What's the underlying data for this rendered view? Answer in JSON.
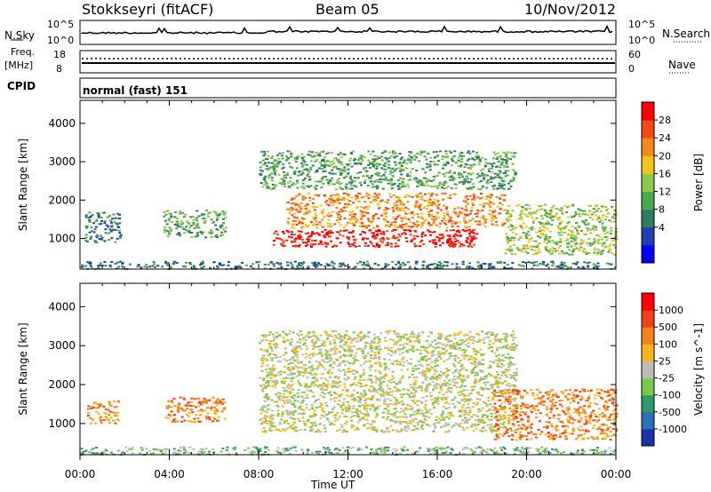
{
  "header": {
    "station": "Stokkseyri (fitACF)",
    "beam": "Beam 05",
    "date": "10/Nov/2012"
  },
  "panels": {
    "nsky_label": "N.Sky",
    "nsky_ticks": [
      "10^5",
      "10^0"
    ],
    "nsearch_label": "N.Search",
    "nsearch_ticks": [
      "10^5",
      "10^0"
    ],
    "freq_label_top": "Freq.",
    "freq_label_unit": "[MHz]",
    "freq_ticks": [
      "18",
      "8"
    ],
    "nave_label": "Nave",
    "nave_ticks": [
      "60",
      "0"
    ],
    "cpid_label": "CPID",
    "cpid_text": "normal (fast) 151"
  },
  "chart_data": [
    {
      "type": "heatmap",
      "title": "",
      "ylabel": "Slant Range [km]",
      "xlabel": "",
      "x_ticks": [
        "00:00",
        "04:00",
        "08:00",
        "12:00",
        "16:00",
        "20:00",
        "00:00"
      ],
      "y_ticks": [
        "1000",
        "2000",
        "3000",
        "4000"
      ],
      "ylim": [
        200,
        4600
      ],
      "xlim_hours": [
        0,
        24
      ],
      "colorbar": {
        "label": "Power [dB]",
        "ticks": [
          "28",
          "24",
          "20",
          "16",
          "12",
          "8",
          "4"
        ],
        "colors": [
          "#0000ff",
          "#1d3fb0",
          "#2e7d63",
          "#4aa94a",
          "#8dc84a",
          "#f5c21a",
          "#f58a1c",
          "#f24a1a",
          "#ff0000"
        ]
      },
      "regions": [
        {
          "name": "ground scatter band",
          "t": [
            0.0,
            24.0
          ],
          "r": [
            220,
            420
          ],
          "level": 2
        },
        {
          "name": "early patch",
          "t": [
            0.2,
            1.8
          ],
          "r": [
            900,
            1700
          ],
          "level": 2
        },
        {
          "name": "early patch 2",
          "t": [
            3.7,
            6.5
          ],
          "r": [
            1050,
            1750
          ],
          "level": 3
        },
        {
          "name": "main echo lower",
          "t": [
            8.6,
            17.8
          ],
          "r": [
            800,
            1250
          ],
          "level": 8
        },
        {
          "name": "main echo mid",
          "t": [
            9.2,
            19.0
          ],
          "r": [
            1300,
            2200
          ],
          "level": 6
        },
        {
          "name": "upper echo",
          "t": [
            8.0,
            19.5
          ],
          "r": [
            2300,
            3300
          ],
          "level": 3
        },
        {
          "name": "late echo",
          "t": [
            19.0,
            24.0
          ],
          "r": [
            600,
            1900
          ],
          "level": 4
        }
      ]
    },
    {
      "type": "heatmap",
      "title": "",
      "ylabel": "Slant Range [km]",
      "xlabel": "Time UT",
      "x_ticks": [
        "00:00",
        "04:00",
        "08:00",
        "12:00",
        "16:00",
        "20:00",
        "00:00"
      ],
      "y_ticks": [
        "1000",
        "2000",
        "3000",
        "4000"
      ],
      "ylim": [
        200,
        4600
      ],
      "xlim_hours": [
        0,
        24
      ],
      "colorbar": {
        "label": "Velocity [m s^-1]",
        "ticks": [
          "1000",
          "500",
          "100",
          "25",
          "-25",
          "-100",
          "-500",
          "-1000"
        ],
        "colors": [
          "#1a2fa8",
          "#2c6fb8",
          "#2e9a6a",
          "#77c94a",
          "#bdbdb5",
          "#f8b41c",
          "#f5821c",
          "#f2401a",
          "#ff0000"
        ]
      },
      "regions": [
        {
          "name": "ground scatter band",
          "t": [
            0.0,
            24.0
          ],
          "r": [
            220,
            420
          ],
          "level": 3
        },
        {
          "name": "early patch",
          "t": [
            0.3,
            1.7
          ],
          "r": [
            1000,
            1600
          ],
          "level": 6
        },
        {
          "name": "early patch 2",
          "t": [
            3.8,
            6.5
          ],
          "r": [
            1050,
            1700
          ],
          "level": 6
        },
        {
          "name": "main grey echo",
          "t": [
            8.0,
            19.5
          ],
          "r": [
            800,
            2300
          ],
          "level": 4
        },
        {
          "name": "upper echo",
          "t": [
            8.0,
            19.5
          ],
          "r": [
            2300,
            3400
          ],
          "level": 4
        },
        {
          "name": "late echo",
          "t": [
            18.5,
            24.0
          ],
          "r": [
            600,
            1900
          ],
          "level": 6
        }
      ]
    }
  ]
}
